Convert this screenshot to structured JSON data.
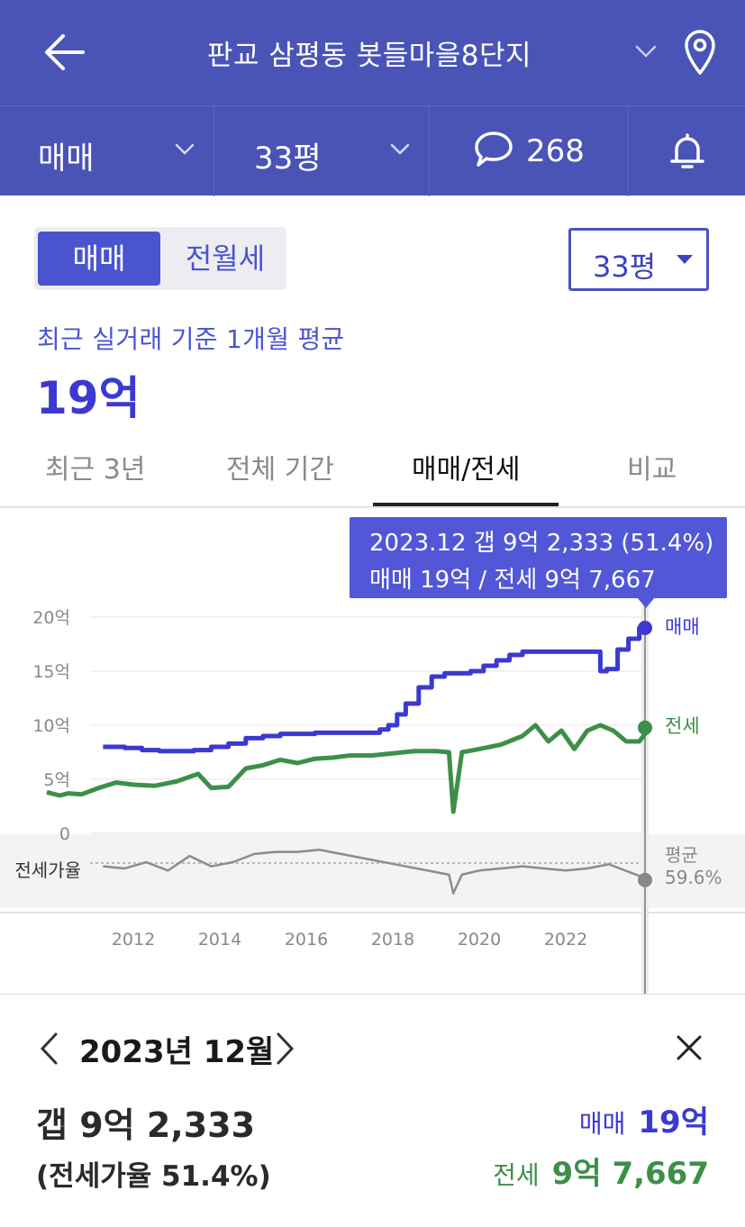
{
  "header": {
    "title": "판교 삼평동 봇들마을8단지"
  },
  "filters": {
    "deal_type": "매매",
    "size": "33평",
    "comment_count": "268"
  },
  "segment": {
    "active": "매매",
    "inactive": "전월세"
  },
  "size_select": {
    "label": "33평"
  },
  "summary": {
    "caption": "최근 실거래 기준 1개월 평균",
    "value": "19억"
  },
  "tabs": [
    {
      "label": "최근 3년",
      "active": false
    },
    {
      "label": "전체 기간",
      "active": false
    },
    {
      "label": "매매/전세",
      "active": true
    },
    {
      "label": "비교",
      "active": false
    }
  ],
  "tooltip": {
    "line1": "2023.12  갭 9억 2,333 (51.4%)",
    "line2": "매매 19억 / 전세 9억 7,667"
  },
  "detail": {
    "month": "2023년 12월",
    "gap": "갭 9억 2,333",
    "ratio": "(전세가율 51.4%)",
    "sale_label": "매매",
    "sale_value": "19억",
    "jeonse_label": "전세",
    "jeonse_value": "9억 7,667"
  },
  "colors": {
    "brand": "#4a54b7",
    "sale": "#3b39d0",
    "jeonse": "#3d8f47",
    "ratio": "#8c8c8c"
  },
  "chart_data": {
    "type": "line",
    "x_ticks": [
      "2012",
      "2014",
      "2016",
      "2018",
      "2020",
      "2022"
    ],
    "y_ticks": [
      "20억",
      "15억",
      "10억",
      "5억",
      "0"
    ],
    "ylim": [
      0,
      20
    ],
    "ratio_axis_label": "전세가율",
    "ratio_avg_label": "평균",
    "ratio_avg_value": "59.6%",
    "series": [
      {
        "name": "매매",
        "x": [
          2011.3,
          2011.8,
          2012.2,
          2012.6,
          2013.0,
          2013.4,
          2013.8,
          2014.2,
          2014.6,
          2015.0,
          2015.4,
          2015.8,
          2016.2,
          2016.6,
          2017.0,
          2017.4,
          2017.7,
          2017.9,
          2018.1,
          2018.3,
          2018.6,
          2018.9,
          2019.2,
          2019.5,
          2019.8,
          2020.1,
          2020.4,
          2020.7,
          2021.0,
          2021.5,
          2022.0,
          2022.5,
          2022.8,
          2022.95,
          2023.2,
          2023.45,
          2023.7,
          2023.95
        ],
        "values": [
          8.0,
          7.9,
          7.7,
          7.6,
          7.6,
          7.7,
          8.0,
          8.3,
          8.8,
          9.0,
          9.2,
          9.2,
          9.3,
          9.3,
          9.3,
          9.3,
          9.6,
          10.0,
          11.0,
          12.0,
          13.5,
          14.5,
          14.8,
          14.8,
          15.0,
          15.5,
          16.0,
          16.5,
          16.8,
          16.8,
          16.8,
          16.8,
          15.0,
          15.2,
          17.0,
          18.0,
          19.0,
          19.0
        ]
      },
      {
        "name": "전세",
        "x": [
          2010.0,
          2010.3,
          2010.5,
          2010.8,
          2011.2,
          2011.6,
          2012.0,
          2012.5,
          2013.0,
          2013.5,
          2013.8,
          2014.2,
          2014.6,
          2015.0,
          2015.4,
          2015.8,
          2016.2,
          2016.6,
          2017.0,
          2017.5,
          2018.0,
          2018.5,
          2019.0,
          2019.3,
          2019.4,
          2019.6,
          2020.0,
          2020.5,
          2021.0,
          2021.3,
          2021.6,
          2021.9,
          2022.2,
          2022.5,
          2022.8,
          2023.1,
          2023.4,
          2023.7,
          2023.95
        ],
        "values": [
          3.8,
          3.5,
          3.7,
          3.6,
          4.2,
          4.7,
          4.5,
          4.4,
          4.8,
          5.5,
          4.2,
          4.3,
          6.0,
          6.3,
          6.8,
          6.5,
          6.9,
          7.0,
          7.2,
          7.2,
          7.4,
          7.6,
          7.6,
          7.5,
          2.0,
          7.5,
          7.8,
          8.2,
          9.0,
          10.0,
          8.5,
          9.5,
          7.8,
          9.5,
          10.0,
          9.5,
          8.5,
          8.5,
          9.8
        ]
      }
    ],
    "ratio_series": {
      "name": "전세가율",
      "x": [
        2011.3,
        2011.8,
        2012.3,
        2012.8,
        2013.3,
        2013.8,
        2014.3,
        2014.8,
        2015.3,
        2015.8,
        2016.3,
        2016.8,
        2017.3,
        2017.8,
        2018.3,
        2018.8,
        2019.3,
        2019.4,
        2019.6,
        2020.0,
        2020.5,
        2021.0,
        2021.5,
        2022.0,
        2022.5,
        2023.0,
        2023.5,
        2023.95
      ],
      "values": [
        58,
        57,
        60,
        56,
        63,
        58,
        60,
        64,
        65,
        65,
        66,
        64,
        62,
        60,
        58,
        56,
        54,
        45,
        54,
        56,
        57,
        58,
        57,
        56,
        57,
        59,
        55,
        51.4
      ]
    },
    "selected": {
      "x": "2023.12",
      "sale": 19,
      "jeonse": 9.7667,
      "ratio": 51.4
    }
  }
}
